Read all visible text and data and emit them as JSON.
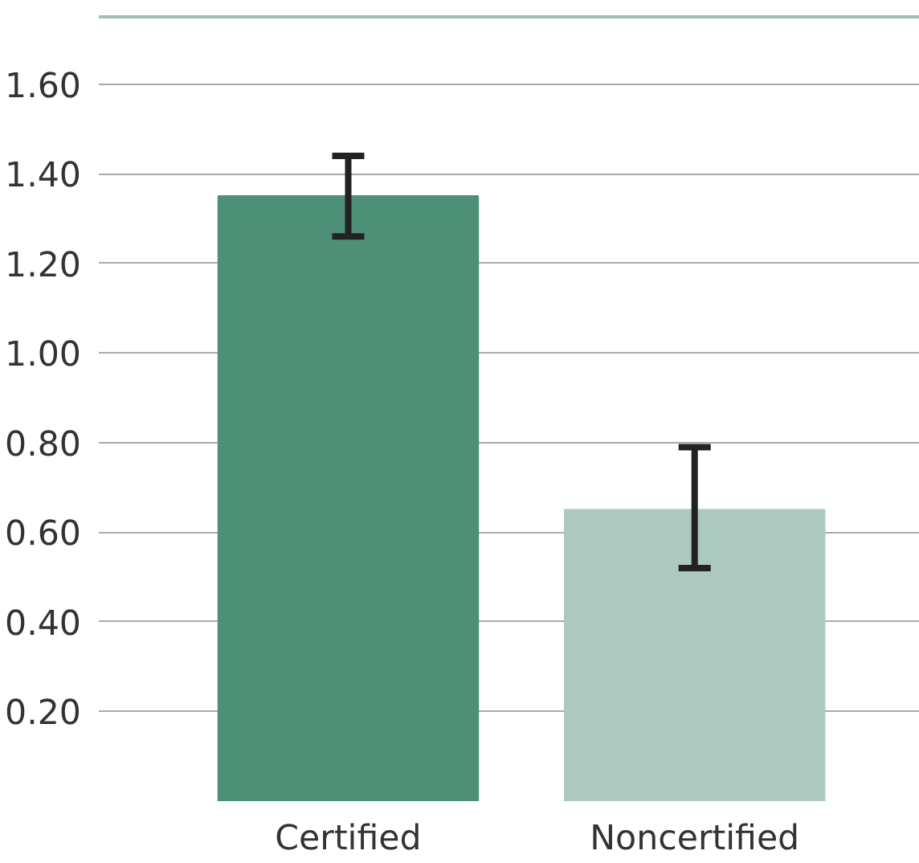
{
  "chart_data": {
    "type": "bar",
    "categories": [
      "Certified",
      "Noncertified"
    ],
    "values": [
      1.35,
      0.65
    ],
    "colors": [
      "#4d8f77",
      "#adc9bf"
    ],
    "errors": [
      [
        1.26,
        1.44
      ],
      [
        0.52,
        0.79
      ]
    ],
    "ylim": [
      0,
      1.75
    ],
    "yticks": [
      {
        "value": 0.2,
        "label": "0.20"
      },
      {
        "value": 0.4,
        "label": "0.40"
      },
      {
        "value": 0.6,
        "label": "0.60"
      },
      {
        "value": 0.8,
        "label": "0.80"
      },
      {
        "value": 1.0,
        "label": "1.00"
      },
      {
        "value": 1.2,
        "label": "1.20"
      },
      {
        "value": 1.4,
        "label": "1.40"
      },
      {
        "value": 1.6,
        "label": "1.60"
      }
    ],
    "grid": "y"
  }
}
